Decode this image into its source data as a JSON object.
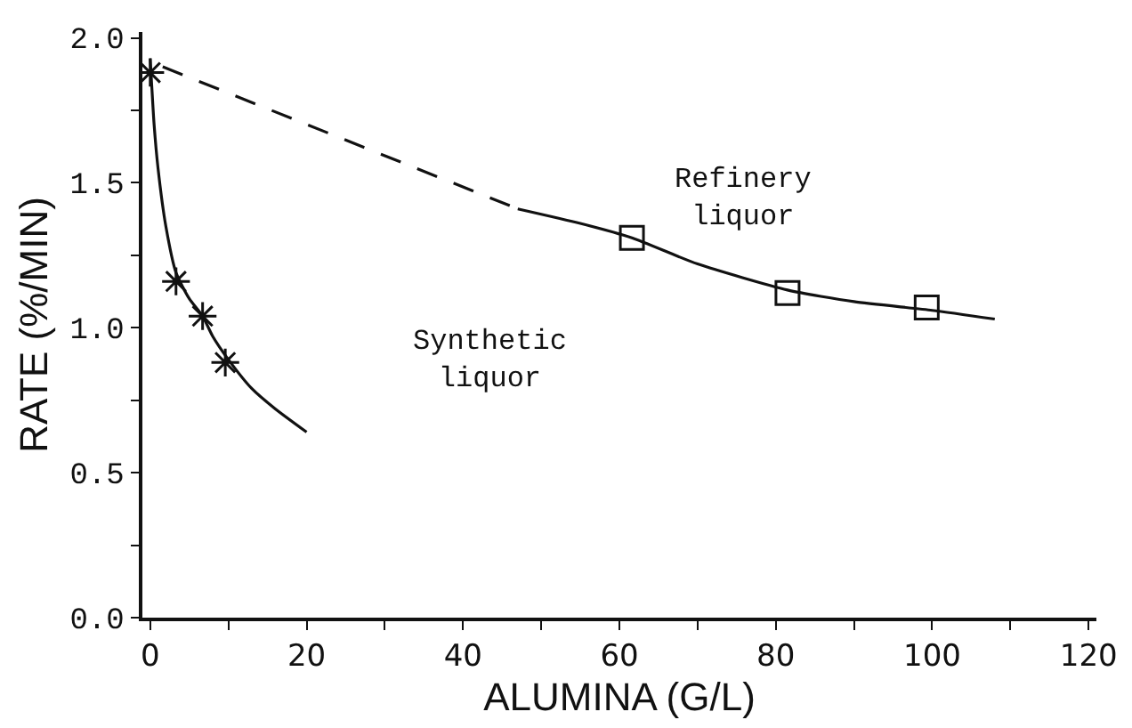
{
  "chart_data": {
    "type": "line",
    "xlabel": "ALUMINA (G/L)",
    "ylabel": "RATE (%/MIN)",
    "xlim": [
      -1,
      121
    ],
    "ylim": [
      0,
      2.02
    ],
    "xticks": [
      0,
      {
        "value": 10,
        "label": null
      },
      20,
      {
        "value": 30,
        "label": null
      },
      40,
      {
        "value": 50,
        "label": null
      },
      60,
      {
        "value": 70,
        "label": null
      },
      80,
      {
        "value": 90,
        "label": null
      },
      100,
      {
        "value": 110,
        "label": null
      },
      120
    ],
    "yticks": [
      {
        "value": 0,
        "label": "0.0"
      },
      {
        "value": 0.25,
        "label": null
      },
      {
        "value": 0.5,
        "label": "0.5"
      },
      {
        "value": 0.75,
        "label": null
      },
      {
        "value": 1,
        "label": "1.0"
      },
      {
        "value": 1.25,
        "label": null
      },
      {
        "value": 1.5,
        "label": "1.5"
      },
      {
        "value": 1.75,
        "label": null
      },
      {
        "value": 2,
        "label": "2.0"
      }
    ],
    "grid": false,
    "series": [
      {
        "color": "#111111",
        "line_style": "solid",
        "marker": "none",
        "x": [
          0,
          0.5,
          1,
          2,
          3.3,
          5,
          6.7,
          8,
          10,
          13,
          16,
          20
        ],
        "values": [
          1.93,
          1.7,
          1.55,
          1.35,
          1.19,
          1.1,
          1.04,
          0.97,
          0.89,
          0.79,
          0.72,
          0.64
        ]
      },
      {
        "type": "scatter",
        "color": "#111111",
        "marker": "cross",
        "x": [
          0,
          3.3,
          6.7,
          9.6
        ],
        "values": [
          1.88,
          1.16,
          1.04,
          0.88
        ]
      },
      {
        "color": "#111111",
        "line_style": "dashed",
        "marker": "none",
        "x": [
          1.6,
          47
        ],
        "values": [
          1.9,
          1.41
        ]
      },
      {
        "color": "#111111",
        "line_style": "solid",
        "marker": "none",
        "x": [
          47,
          55,
          61.6,
          70,
          81.5,
          90,
          100,
          108
        ],
        "values": [
          1.41,
          1.36,
          1.31,
          1.22,
          1.13,
          1.09,
          1.06,
          1.03
        ]
      },
      {
        "type": "scatter",
        "color": "#111111",
        "marker": "square",
        "x": [
          61.6,
          81.5,
          99.3
        ],
        "values": [
          1.31,
          1.12,
          1.07
        ]
      }
    ],
    "annotations": [
      "Synthetic\nliquor",
      "Refinery\nliquor"
    ]
  }
}
